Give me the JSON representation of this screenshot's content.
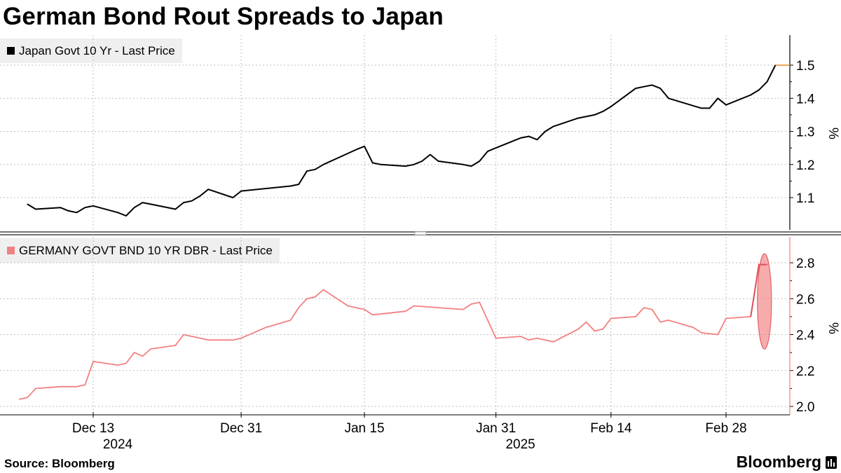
{
  "title": "German Bond Rout Spreads to Japan",
  "source": "Source: Bloomberg",
  "brand": "Bloomberg",
  "chart_data": [
    {
      "type": "line",
      "legend": "Japan Govt 10 Yr - Last Price",
      "color": "#000000",
      "ylabel": "%",
      "ylim": [
        1.0,
        1.6
      ],
      "yticks": [
        1.1,
        1.2,
        1.3,
        1.4,
        1.5
      ],
      "ytick_labels": [
        "1.1",
        "1.2",
        "1.3",
        "1.4",
        "1.5"
      ],
      "last_value": 1.5,
      "x": [
        "2024-12-05",
        "2024-12-06",
        "2024-12-09",
        "2024-12-10",
        "2024-12-11",
        "2024-12-12",
        "2024-12-13",
        "2024-12-16",
        "2024-12-17",
        "2024-12-18",
        "2024-12-19",
        "2024-12-20",
        "2024-12-23",
        "2024-12-24",
        "2024-12-25",
        "2024-12-26",
        "2024-12-27",
        "2024-12-30",
        "2024-12-31",
        "2025-01-06",
        "2025-01-07",
        "2025-01-08",
        "2025-01-09",
        "2025-01-10",
        "2025-01-14",
        "2025-01-15",
        "2025-01-16",
        "2025-01-17",
        "2025-01-20",
        "2025-01-21",
        "2025-01-22",
        "2025-01-23",
        "2025-01-24",
        "2025-01-27",
        "2025-01-28",
        "2025-01-29",
        "2025-01-30",
        "2025-01-31",
        "2025-02-03",
        "2025-02-04",
        "2025-02-05",
        "2025-02-06",
        "2025-02-07",
        "2025-02-10",
        "2025-02-12",
        "2025-02-13",
        "2025-02-14",
        "2025-02-17",
        "2025-02-18",
        "2025-02-19",
        "2025-02-20",
        "2025-02-21",
        "2025-02-25",
        "2025-02-26",
        "2025-02-27",
        "2025-02-28",
        "2025-03-03",
        "2025-03-04",
        "2025-03-05",
        "2025-03-06"
      ],
      "y": [
        1.08,
        1.065,
        1.07,
        1.06,
        1.055,
        1.07,
        1.075,
        1.055,
        1.045,
        1.07,
        1.085,
        1.08,
        1.065,
        1.085,
        1.09,
        1.105,
        1.125,
        1.1,
        1.12,
        1.135,
        1.14,
        1.18,
        1.185,
        1.2,
        1.245,
        1.255,
        1.205,
        1.2,
        1.195,
        1.2,
        1.21,
        1.23,
        1.21,
        1.2,
        1.195,
        1.21,
        1.24,
        1.25,
        1.28,
        1.285,
        1.275,
        1.3,
        1.315,
        1.34,
        1.35,
        1.36,
        1.375,
        1.43,
        1.435,
        1.44,
        1.43,
        1.4,
        1.37,
        1.37,
        1.4,
        1.38,
        1.41,
        1.425,
        1.45,
        1.5
      ]
    },
    {
      "type": "line",
      "legend": "GERMANY GOVT BND 10 YR DBR - Last Price",
      "color": "#f28080",
      "ylabel": "%",
      "ylim": [
        1.95,
        2.9
      ],
      "yticks": [
        2.0,
        2.2,
        2.4,
        2.6,
        2.8
      ],
      "ytick_labels": [
        "2.0",
        "2.2",
        "2.4",
        "2.6",
        "2.8"
      ],
      "highlight": "last-point",
      "x": [
        "2024-12-04",
        "2024-12-05",
        "2024-12-06",
        "2024-12-09",
        "2024-12-10",
        "2024-12-11",
        "2024-12-12",
        "2024-12-13",
        "2024-12-16",
        "2024-12-17",
        "2024-12-18",
        "2024-12-19",
        "2024-12-20",
        "2024-12-23",
        "2024-12-24",
        "2024-12-27",
        "2024-12-30",
        "2024-12-31",
        "2025-01-02",
        "2025-01-03",
        "2025-01-06",
        "2025-01-07",
        "2025-01-08",
        "2025-01-09",
        "2025-01-10",
        "2025-01-13",
        "2025-01-14",
        "2025-01-15",
        "2025-01-16",
        "2025-01-20",
        "2025-01-21",
        "2025-01-24",
        "2025-01-27",
        "2025-01-28",
        "2025-01-29",
        "2025-01-30",
        "2025-01-31",
        "2025-02-03",
        "2025-02-04",
        "2025-02-05",
        "2025-02-06",
        "2025-02-07",
        "2025-02-10",
        "2025-02-11",
        "2025-02-12",
        "2025-02-13",
        "2025-02-14",
        "2025-02-17",
        "2025-02-18",
        "2025-02-19",
        "2025-02-20",
        "2025-02-21",
        "2025-02-24",
        "2025-02-25",
        "2025-02-27",
        "2025-02-28",
        "2025-03-03",
        "2025-03-04",
        "2025-03-05"
      ],
      "y": [
        2.04,
        2.05,
        2.1,
        2.11,
        2.11,
        2.11,
        2.12,
        2.25,
        2.23,
        2.24,
        2.3,
        2.28,
        2.32,
        2.34,
        2.4,
        2.37,
        2.37,
        2.38,
        2.42,
        2.44,
        2.48,
        2.55,
        2.6,
        2.61,
        2.65,
        2.56,
        2.55,
        2.54,
        2.51,
        2.53,
        2.56,
        2.55,
        2.54,
        2.57,
        2.58,
        2.48,
        2.38,
        2.39,
        2.37,
        2.38,
        2.37,
        2.36,
        2.43,
        2.47,
        2.42,
        2.43,
        2.49,
        2.5,
        2.55,
        2.54,
        2.47,
        2.48,
        2.44,
        2.41,
        2.4,
        2.49,
        2.5,
        2.79,
        2.79
      ]
    }
  ],
  "x_axis": {
    "ticks": [
      {
        "date": "2024-12-13",
        "label": "Dec 13",
        "sublabel": "2024"
      },
      {
        "date": "2024-12-31",
        "label": "Dec 31",
        "sublabel": ""
      },
      {
        "date": "2025-01-15",
        "label": "Jan 15",
        "sublabel": ""
      },
      {
        "date": "2025-01-31",
        "label": "Jan 31",
        "sublabel": "2025"
      },
      {
        "date": "2025-02-14",
        "label": "Feb 14",
        "sublabel": ""
      },
      {
        "date": "2025-02-28",
        "label": "Feb 28",
        "sublabel": ""
      }
    ]
  }
}
